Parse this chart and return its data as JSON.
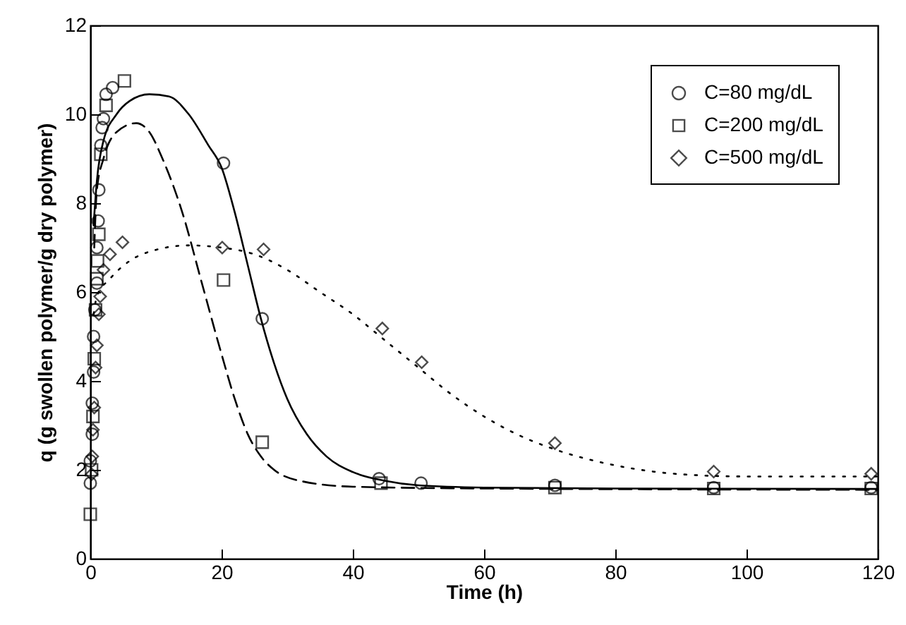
{
  "chart_data": {
    "type": "line",
    "xlabel": "Time (h)",
    "ylabel": "q (g swollen polymer/g dry polymer)",
    "xlim": [
      0,
      120
    ],
    "xticks": [
      0,
      20,
      40,
      60,
      80,
      100,
      120
    ],
    "ylim": [
      0,
      12
    ],
    "yticks": [
      0,
      2,
      4,
      6,
      8,
      10,
      12
    ],
    "grid": false,
    "legend": "top right",
    "series": [
      {
        "name": "C=80 mg/dL",
        "type": "scatter",
        "marker": "circle",
        "color": "#000000",
        "x": [
          0,
          0,
          0.3,
          0.3,
          0.5,
          0.5,
          0.7,
          1.0,
          1.0,
          1.2,
          1.3,
          1.6,
          1.8,
          2.0,
          2.4,
          3.4,
          20.3,
          26.2,
          44,
          50.4,
          70.8,
          95,
          119
        ],
        "values": [
          1.7,
          2.2,
          2.8,
          3.5,
          4.2,
          5.0,
          5.6,
          6.2,
          7.0,
          7.6,
          8.3,
          9.3,
          9.7,
          9.9,
          10.45,
          10.6,
          8.9,
          5.4,
          1.8,
          1.7,
          1.65,
          1.6,
          1.6
        ]
      },
      {
        "name": "C=200 mg/dL",
        "type": "scatter",
        "marker": "square",
        "color": "#000000",
        "x": [
          0,
          0.2,
          0.4,
          0.6,
          0.8,
          1.0,
          1.1,
          1.3,
          1.6,
          2.4,
          5.2,
          20.3,
          26.2,
          44.3,
          70.8,
          95,
          119
        ],
        "values": [
          1.0,
          2.0,
          3.2,
          4.5,
          5.6,
          6.3,
          6.7,
          7.3,
          9.1,
          10.2,
          10.75,
          6.27,
          2.62,
          1.7,
          1.6,
          1.58,
          1.58
        ]
      },
      {
        "name": "C=500 mg/dL",
        "type": "scatter",
        "marker": "diamond",
        "color": "#000000",
        "x": [
          0.2,
          0.3,
          0.4,
          0.6,
          0.8,
          1.0,
          1.3,
          1.5,
          2.0,
          3.0,
          4.9,
          20.1,
          26.4,
          44.5,
          50.5,
          70.8,
          95,
          119
        ],
        "values": [
          1.9,
          2.3,
          2.9,
          3.4,
          4.3,
          4.8,
          5.5,
          5.9,
          6.5,
          6.85,
          7.12,
          7.0,
          6.96,
          5.18,
          4.42,
          2.6,
          1.96,
          1.91
        ]
      },
      {
        "line_style": "solid",
        "color": "#000000",
        "x": [
          0.5,
          1,
          2,
          4,
          6,
          9,
          12,
          15,
          18,
          20,
          22,
          24,
          26,
          28,
          30,
          33,
          36,
          40,
          45,
          50,
          60,
          80,
          120
        ],
        "values": [
          7.5,
          8.5,
          9.4,
          10.0,
          10.3,
          10.45,
          10.4,
          10.0,
          9.3,
          8.8,
          7.8,
          6.6,
          5.4,
          4.4,
          3.6,
          2.8,
          2.3,
          1.95,
          1.75,
          1.65,
          1.6,
          1.58,
          1.57
        ]
      },
      {
        "line_style": "dashed",
        "color": "#000000",
        "x": [
          0.6,
          1,
          2,
          4,
          7,
          9,
          11,
          14,
          17,
          20,
          22,
          24,
          26,
          28,
          32,
          40,
          60,
          120
        ],
        "values": [
          7.0,
          8.3,
          9.0,
          9.6,
          9.8,
          9.6,
          9.0,
          7.8,
          6.2,
          4.6,
          3.6,
          2.8,
          2.3,
          2.0,
          1.75,
          1.62,
          1.58,
          1.55
        ]
      },
      {
        "line_style": "dotted",
        "color": "#000000",
        "x": [
          0.5,
          1,
          3,
          6,
          10,
          15,
          20,
          25,
          30,
          35,
          40,
          45,
          50,
          55,
          60,
          65,
          70,
          80,
          90,
          100,
          120
        ],
        "values": [
          5.5,
          5.9,
          6.3,
          6.7,
          6.95,
          7.05,
          7.0,
          6.85,
          6.5,
          6.0,
          5.5,
          4.9,
          4.3,
          3.7,
          3.2,
          2.8,
          2.5,
          2.1,
          1.9,
          1.85,
          1.85
        ]
      }
    ]
  }
}
